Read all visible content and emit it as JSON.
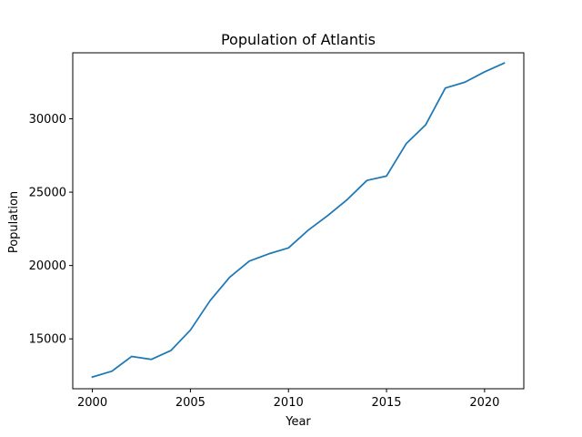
{
  "chart_data": {
    "type": "line",
    "title": "Population of Atlantis",
    "xlabel": "Year",
    "ylabel": "Population",
    "xlim": [
      1999,
      2022
    ],
    "ylim": [
      11600,
      34500
    ],
    "xticks": [
      2000,
      2005,
      2010,
      2015,
      2020
    ],
    "yticks": [
      15000,
      20000,
      25000,
      30000
    ],
    "grid": false,
    "series": [
      {
        "color": "#1f77b4",
        "x": [
          2000,
          2001,
          2002,
          2003,
          2004,
          2005,
          2006,
          2007,
          2008,
          2009,
          2010,
          2011,
          2012,
          2013,
          2014,
          2015,
          2016,
          2017,
          2018,
          2019,
          2020,
          2021
        ],
        "y": [
          12400,
          12800,
          13800,
          13600,
          14200,
          15600,
          17600,
          19200,
          20300,
          20800,
          21200,
          22400,
          23400,
          24500,
          25800,
          26100,
          28300,
          29600,
          32100,
          32500,
          33200,
          33800
        ]
      }
    ]
  }
}
